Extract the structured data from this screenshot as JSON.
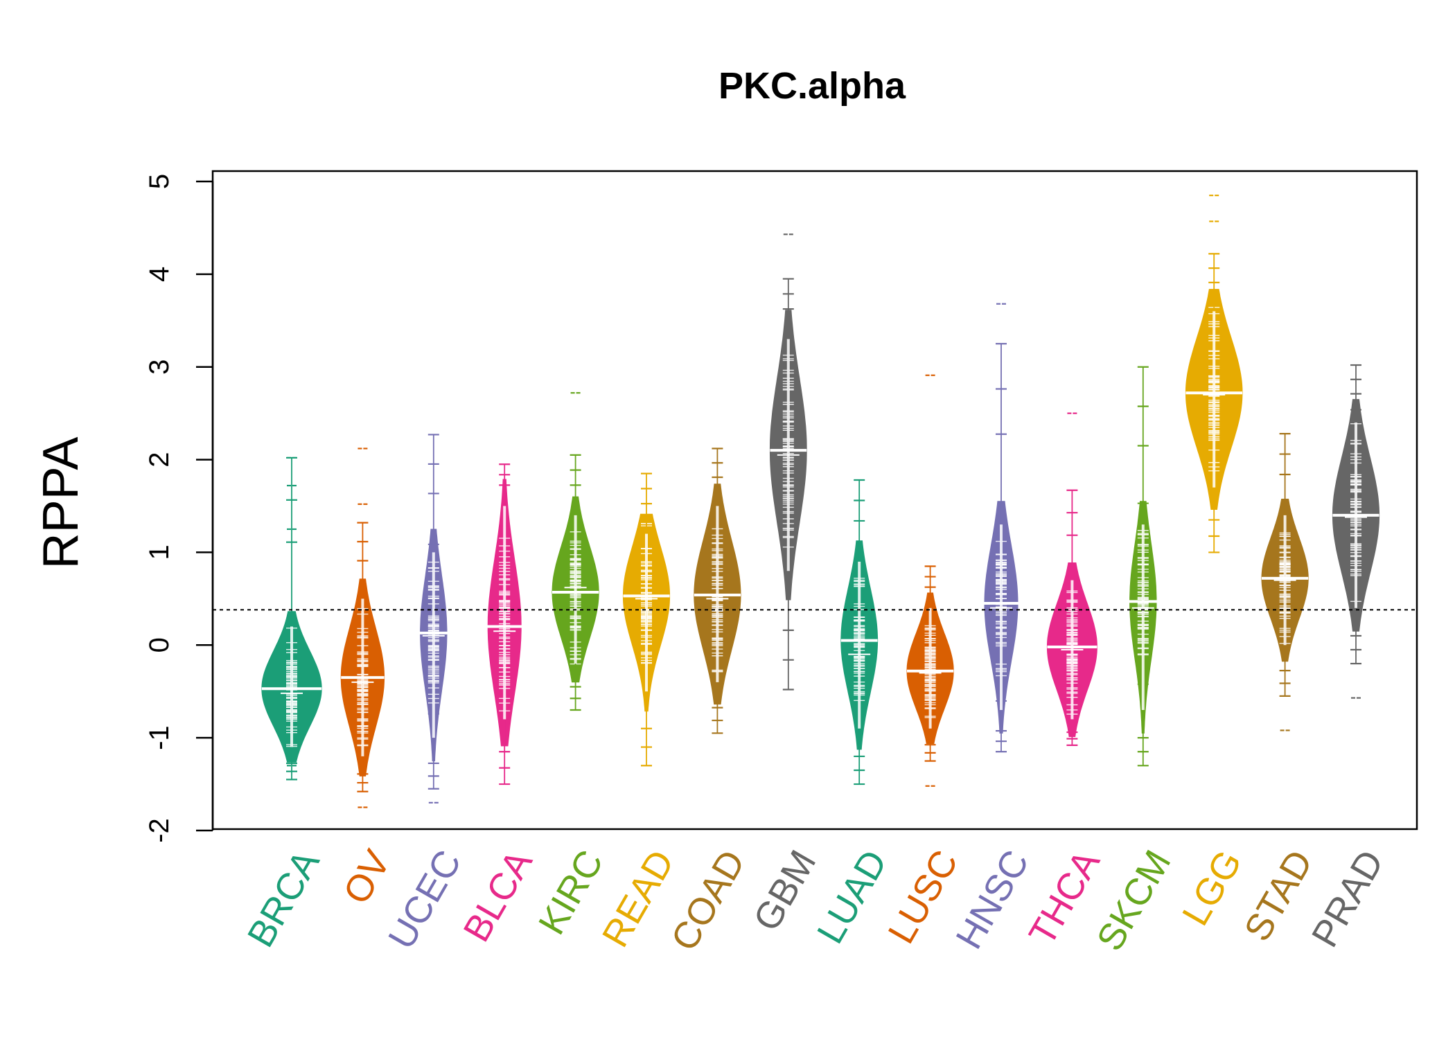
{
  "chart_data": {
    "type": "beanplot",
    "title": "PKC.alpha",
    "xlabel": "",
    "ylabel": "RPPA",
    "ylim": [
      -2,
      5
    ],
    "yticks": [
      -2,
      -1,
      0,
      1,
      2,
      3,
      4,
      5
    ],
    "reference_line": 0.38,
    "grid": false,
    "legend": "none",
    "categories": [
      {
        "name": "BRCA",
        "color": "#1b9e77",
        "median": -0.47,
        "mean": -0.52,
        "min": -1.45,
        "max": 2.02,
        "density_low": -1.1,
        "density_high": 0.2,
        "width_max": 0.9,
        "outliers": [
          1.72,
          1.25,
          2.02,
          -1.3
        ]
      },
      {
        "name": "OV",
        "color": "#d95f02",
        "median": -0.35,
        "mean": -0.4,
        "min": -1.58,
        "max": 1.32,
        "density_low": -1.2,
        "density_high": 0.5,
        "width_max": 0.65,
        "outliers": [
          2.12,
          1.52,
          -1.75
        ]
      },
      {
        "name": "UCEC",
        "color": "#7570b3",
        "median": 0.13,
        "mean": 0.1,
        "min": -1.55,
        "max": 2.27,
        "density_low": -1.0,
        "density_high": 1.0,
        "width_max": 0.4,
        "outliers": [
          -1.7
        ]
      },
      {
        "name": "BLCA",
        "color": "#e7298a",
        "median": 0.2,
        "mean": 0.15,
        "min": -1.5,
        "max": 1.95,
        "density_low": -0.8,
        "density_high": 1.5,
        "width_max": 0.5,
        "outliers": []
      },
      {
        "name": "KIRC",
        "color": "#66a61e",
        "median": 0.57,
        "mean": 0.62,
        "min": -0.7,
        "max": 2.05,
        "density_low": -0.2,
        "density_high": 1.4,
        "width_max": 0.7,
        "outliers": [
          2.72
        ]
      },
      {
        "name": "READ",
        "color": "#e6ab02",
        "median": 0.53,
        "mean": 0.5,
        "min": -1.3,
        "max": 1.85,
        "density_low": -0.5,
        "density_high": 1.2,
        "width_max": 0.7,
        "outliers": []
      },
      {
        "name": "COAD",
        "color": "#a6761d",
        "median": 0.54,
        "mean": 0.5,
        "min": -0.95,
        "max": 2.12,
        "density_low": -0.4,
        "density_high": 1.5,
        "width_max": 0.7,
        "outliers": []
      },
      {
        "name": "GBM",
        "color": "#666666",
        "median": 2.1,
        "mean": 2.05,
        "min": -0.48,
        "max": 3.95,
        "density_low": 0.8,
        "density_high": 3.3,
        "width_max": 0.55,
        "outliers": [
          4.43
        ]
      },
      {
        "name": "LUAD",
        "color": "#1b9e77",
        "median": 0.05,
        "mean": -0.1,
        "min": -1.5,
        "max": 1.78,
        "density_low": -0.9,
        "density_high": 0.9,
        "width_max": 0.55,
        "outliers": []
      },
      {
        "name": "LUSC",
        "color": "#d95f02",
        "median": -0.28,
        "mean": -0.3,
        "min": -1.25,
        "max": 0.85,
        "density_low": -0.9,
        "density_high": 0.4,
        "width_max": 0.7,
        "outliers": [
          2.91,
          -1.52
        ]
      },
      {
        "name": "HNSC",
        "color": "#7570b3",
        "median": 0.45,
        "mean": 0.4,
        "min": -1.15,
        "max": 3.25,
        "density_low": -0.7,
        "density_high": 1.3,
        "width_max": 0.5,
        "outliers": [
          3.68
        ]
      },
      {
        "name": "THCA",
        "color": "#e7298a",
        "median": -0.02,
        "mean": -0.05,
        "min": -1.08,
        "max": 1.67,
        "density_low": -0.8,
        "density_high": 0.7,
        "width_max": 0.75,
        "outliers": [
          2.5
        ]
      },
      {
        "name": "SKCM",
        "color": "#66a61e",
        "median": 0.47,
        "mean": 0.4,
        "min": -1.3,
        "max": 3.0,
        "density_low": -0.7,
        "density_high": 1.3,
        "width_max": 0.4,
        "outliers": []
      },
      {
        "name": "LGG",
        "color": "#e6ab02",
        "median": 2.72,
        "mean": 2.7,
        "min": 1.0,
        "max": 4.22,
        "density_low": 1.7,
        "density_high": 3.6,
        "width_max": 0.85,
        "outliers": [
          4.57,
          4.85
        ]
      },
      {
        "name": "STAD",
        "color": "#a6761d",
        "median": 0.72,
        "mean": 0.7,
        "min": -0.55,
        "max": 2.28,
        "density_low": 0.0,
        "density_high": 1.4,
        "width_max": 0.7,
        "outliers": [
          -0.92
        ]
      },
      {
        "name": "PRAD",
        "color": "#666666",
        "median": 1.4,
        "mean": 1.38,
        "min": -0.2,
        "max": 3.02,
        "density_low": 0.4,
        "density_high": 2.4,
        "width_max": 0.7,
        "outliers": [
          -0.57
        ]
      }
    ]
  }
}
